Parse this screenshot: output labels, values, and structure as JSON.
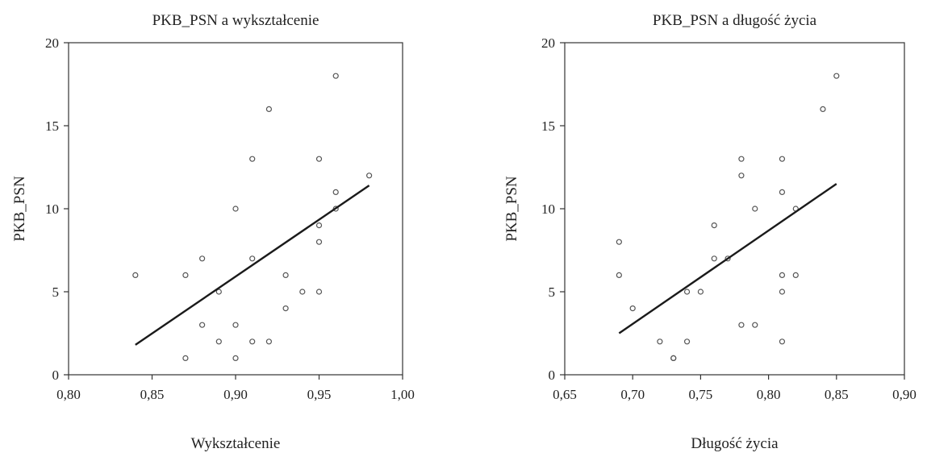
{
  "chart_data": [
    {
      "type": "scatter",
      "title": "PKB_PSN a wykształcenie",
      "xlabel": "Wykształcenie",
      "ylabel": "PKB_PSN",
      "xlim": [
        0.8,
        1.0
      ],
      "ylim": [
        0,
        20
      ],
      "xticks": [
        0.8,
        0.85,
        0.9,
        0.95,
        1.0
      ],
      "xtick_labels": [
        "0,80",
        "0,85",
        "0,90",
        "0,95",
        "1,00"
      ],
      "yticks": [
        0,
        5,
        10,
        15,
        20
      ],
      "ytick_labels": [
        "0",
        "5",
        "10",
        "15",
        "20"
      ],
      "grid": false,
      "points": [
        {
          "x": 0.84,
          "y": 6
        },
        {
          "x": 0.87,
          "y": 6
        },
        {
          "x": 0.87,
          "y": 1
        },
        {
          "x": 0.88,
          "y": 7
        },
        {
          "x": 0.88,
          "y": 3
        },
        {
          "x": 0.89,
          "y": 5
        },
        {
          "x": 0.89,
          "y": 2
        },
        {
          "x": 0.9,
          "y": 10
        },
        {
          "x": 0.9,
          "y": 3
        },
        {
          "x": 0.9,
          "y": 1
        },
        {
          "x": 0.91,
          "y": 13
        },
        {
          "x": 0.91,
          "y": 7
        },
        {
          "x": 0.91,
          "y": 2
        },
        {
          "x": 0.92,
          "y": 16
        },
        {
          "x": 0.92,
          "y": 2
        },
        {
          "x": 0.93,
          "y": 6
        },
        {
          "x": 0.93,
          "y": 4
        },
        {
          "x": 0.94,
          "y": 5
        },
        {
          "x": 0.95,
          "y": 13
        },
        {
          "x": 0.95,
          "y": 9
        },
        {
          "x": 0.95,
          "y": 8
        },
        {
          "x": 0.95,
          "y": 5
        },
        {
          "x": 0.96,
          "y": 18
        },
        {
          "x": 0.96,
          "y": 11
        },
        {
          "x": 0.96,
          "y": 10
        },
        {
          "x": 0.98,
          "y": 12
        }
      ],
      "trend_line": {
        "x": [
          0.84,
          0.98
        ],
        "y": [
          1.8,
          11.4
        ]
      },
      "marker_color": "#555555",
      "line_color": "#1a1a1a"
    },
    {
      "type": "scatter",
      "title": "PKB_PSN a długość życia",
      "xlabel": "Długość życia",
      "ylabel": "PKB_PSN",
      "xlim": [
        0.65,
        0.9
      ],
      "ylim": [
        0,
        20
      ],
      "xticks": [
        0.65,
        0.7,
        0.75,
        0.8,
        0.85,
        0.9
      ],
      "xtick_labels": [
        "0,65",
        "0,70",
        "0,75",
        "0,80",
        "0,85",
        "0,90"
      ],
      "yticks": [
        0,
        5,
        10,
        15,
        20
      ],
      "ytick_labels": [
        "0",
        "5",
        "10",
        "15",
        "20"
      ],
      "grid": false,
      "points": [
        {
          "x": 0.69,
          "y": 8
        },
        {
          "x": 0.69,
          "y": 6
        },
        {
          "x": 0.7,
          "y": 4
        },
        {
          "x": 0.72,
          "y": 2
        },
        {
          "x": 0.73,
          "y": 1
        },
        {
          "x": 0.73,
          "y": 1
        },
        {
          "x": 0.74,
          "y": 5
        },
        {
          "x": 0.74,
          "y": 2
        },
        {
          "x": 0.75,
          "y": 5
        },
        {
          "x": 0.76,
          "y": 9
        },
        {
          "x": 0.76,
          "y": 7
        },
        {
          "x": 0.77,
          "y": 7
        },
        {
          "x": 0.78,
          "y": 13
        },
        {
          "x": 0.78,
          "y": 12
        },
        {
          "x": 0.78,
          "y": 3
        },
        {
          "x": 0.79,
          "y": 10
        },
        {
          "x": 0.79,
          "y": 3
        },
        {
          "x": 0.81,
          "y": 13
        },
        {
          "x": 0.81,
          "y": 11
        },
        {
          "x": 0.81,
          "y": 6
        },
        {
          "x": 0.81,
          "y": 5
        },
        {
          "x": 0.81,
          "y": 2
        },
        {
          "x": 0.82,
          "y": 10
        },
        {
          "x": 0.82,
          "y": 6
        },
        {
          "x": 0.84,
          "y": 16
        },
        {
          "x": 0.85,
          "y": 18
        }
      ],
      "trend_line": {
        "x": [
          0.69,
          0.85
        ],
        "y": [
          2.5,
          11.5
        ]
      },
      "marker_color": "#555555",
      "line_color": "#1a1a1a"
    }
  ]
}
